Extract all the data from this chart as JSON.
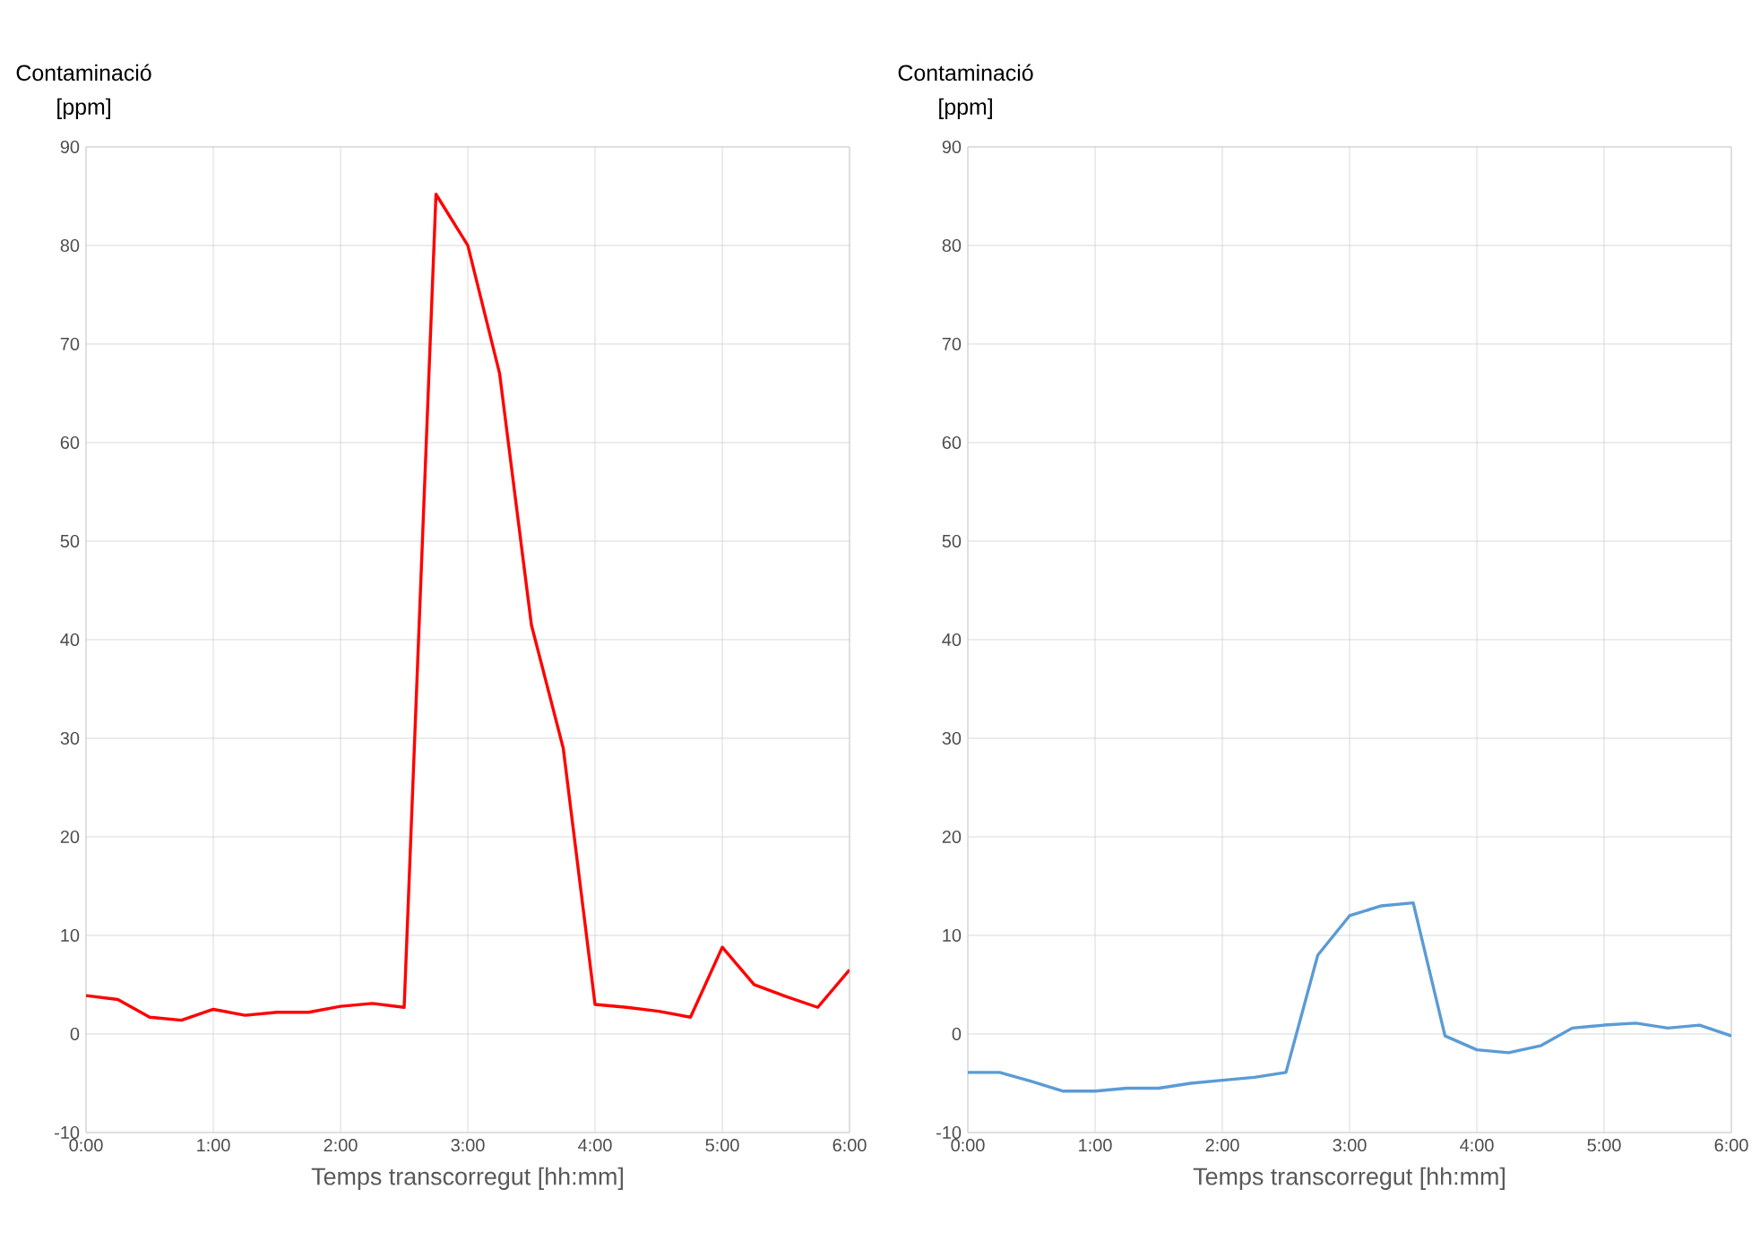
{
  "chart_data": [
    {
      "type": "line",
      "ylabel": "Contaminació [ppm]",
      "xlabel": "Temps transcorregut [hh:mm]",
      "x": [
        0,
        0.25,
        0.5,
        0.75,
        1,
        1.25,
        1.5,
        1.75,
        2,
        2.25,
        2.5,
        2.75,
        3,
        3.25,
        3.5,
        3.75,
        4,
        4.25,
        4.5,
        4.75,
        5,
        5.25,
        5.5,
        5.75,
        6
      ],
      "series": [
        {
          "color": "#ff0000",
          "values": [
            3.9,
            3.5,
            1.7,
            1.4,
            2.5,
            1.9,
            2.2,
            2.2,
            2.8,
            3.1,
            2.7,
            85.2,
            80,
            67,
            41.5,
            29,
            3,
            2.7,
            2.3,
            1.7,
            8.8,
            5,
            3.8,
            2.7,
            6.5
          ]
        }
      ],
      "xlim": [
        0,
        6
      ],
      "xticks": [
        {
          "value": 0,
          "label": "0:00"
        },
        {
          "value": 1,
          "label": "1:00"
        },
        {
          "value": 2,
          "label": "2:00"
        },
        {
          "value": 3,
          "label": "3:00"
        },
        {
          "value": 4,
          "label": "4:00"
        },
        {
          "value": 5,
          "label": "5:00"
        },
        {
          "value": 6,
          "label": "6:00"
        }
      ],
      "ylim": [
        -10,
        90
      ],
      "yticks": [
        -10,
        0,
        10,
        20,
        30,
        40,
        50,
        60,
        70,
        80,
        90
      ],
      "grid": true,
      "marker": "none",
      "line_style": "solid"
    },
    {
      "type": "line",
      "ylabel": "Contaminació [ppm]",
      "xlabel": "Temps transcorregut [hh:mm]",
      "x": [
        0,
        0.25,
        0.5,
        0.75,
        1,
        1.25,
        1.5,
        1.75,
        2,
        2.25,
        2.5,
        2.75,
        3,
        3.25,
        3.5,
        3.75,
        4,
        4.25,
        4.5,
        4.75,
        5,
        5.25,
        5.5,
        5.75,
        6
      ],
      "series": [
        {
          "color": "#5b9bd5",
          "values": [
            -3.9,
            -3.9,
            -4.8,
            -5.8,
            -5.8,
            -5.5,
            -5.5,
            -5,
            -4.7,
            -4.4,
            -3.9,
            8,
            12,
            13,
            13.3,
            -0.2,
            -1.6,
            -1.9,
            -1.2,
            0.6,
            0.9,
            1.1,
            0.6,
            0.9,
            -0.2
          ]
        }
      ],
      "xlim": [
        0,
        6
      ],
      "xticks": [
        {
          "value": 0,
          "label": "0:00"
        },
        {
          "value": 1,
          "label": "1:00"
        },
        {
          "value": 2,
          "label": "2:00"
        },
        {
          "value": 3,
          "label": "3:00"
        },
        {
          "value": 4,
          "label": "4:00"
        },
        {
          "value": 5,
          "label": "5:00"
        },
        {
          "value": 6,
          "label": "6:00"
        }
      ],
      "ylim": [
        -10,
        90
      ],
      "yticks": [
        -10,
        0,
        10,
        20,
        30,
        40,
        50,
        60,
        70,
        80,
        90
      ],
      "grid": true,
      "marker": "none",
      "line_style": "solid"
    }
  ]
}
